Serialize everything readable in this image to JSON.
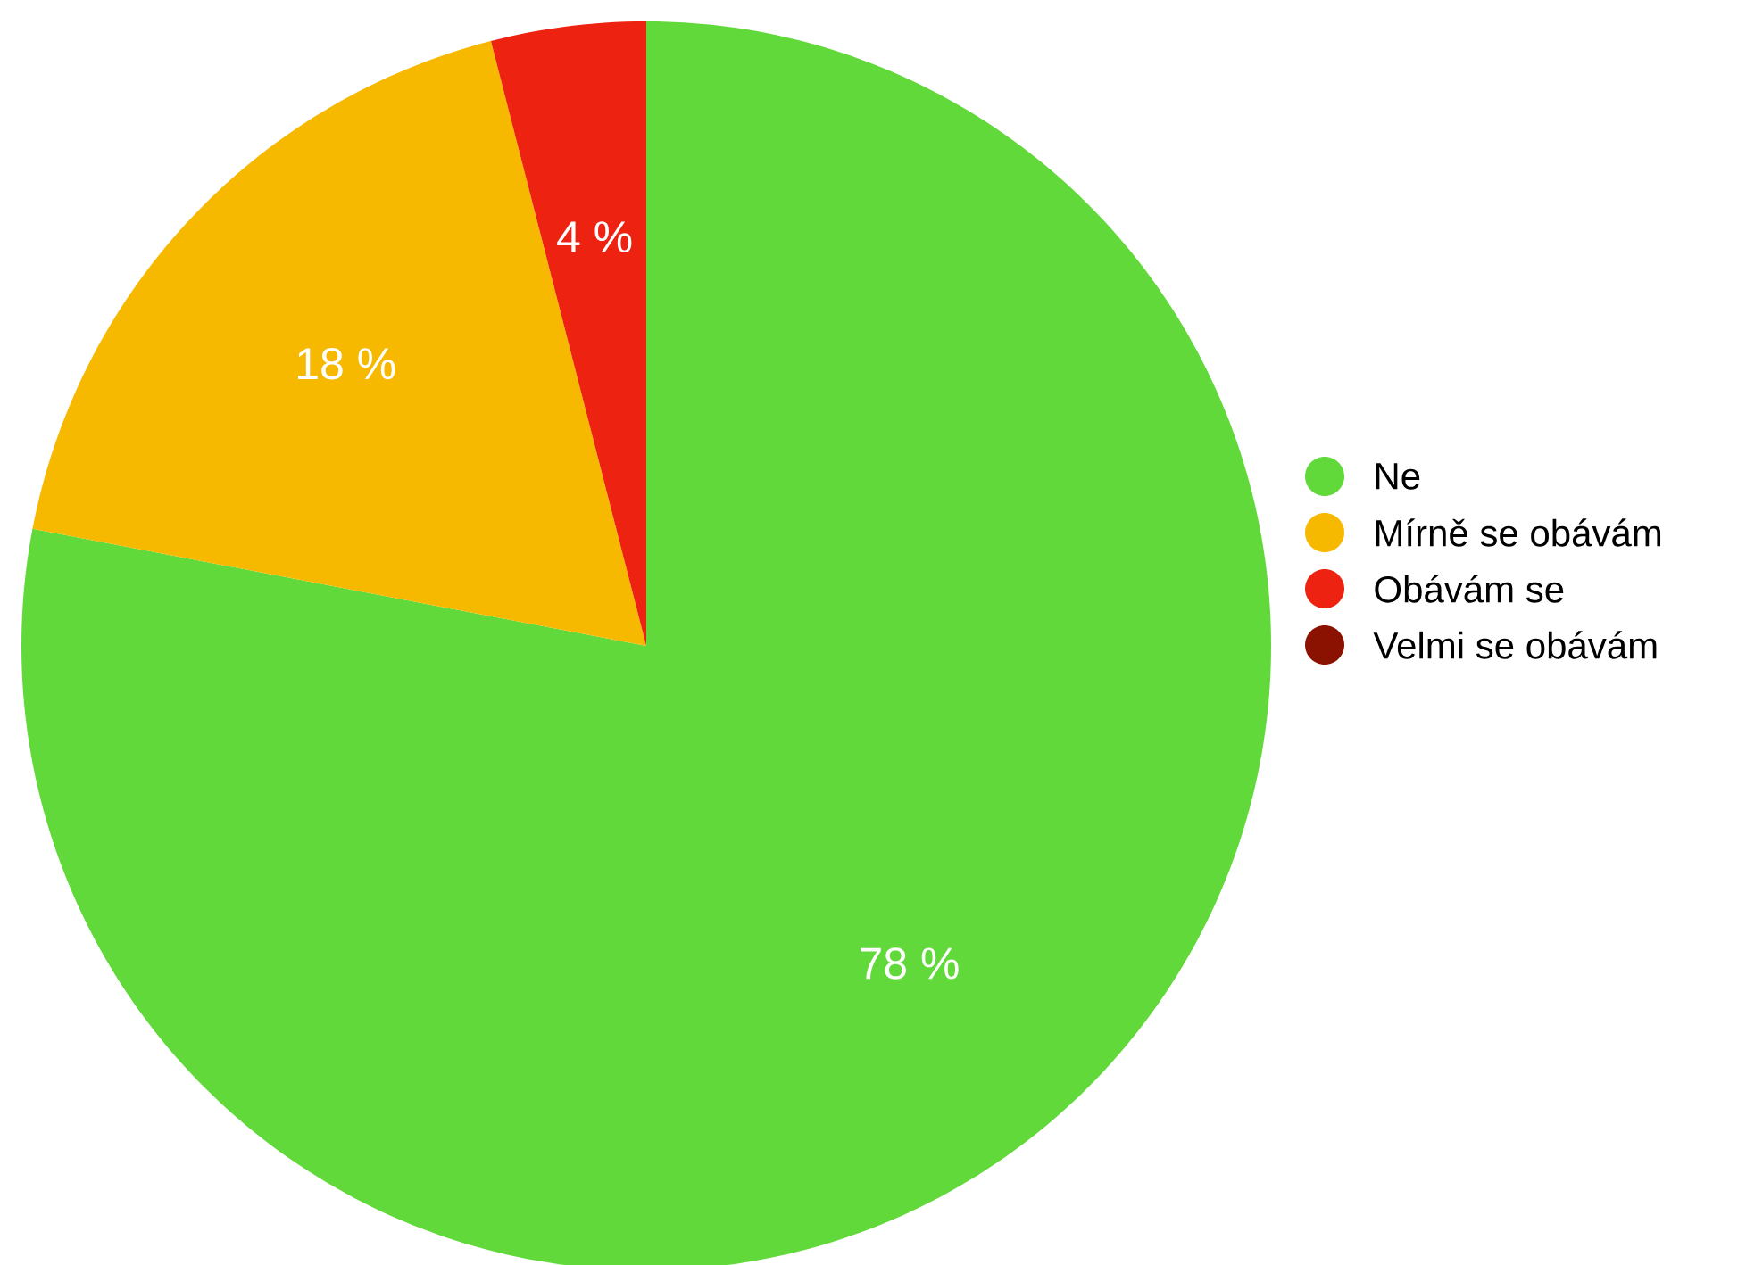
{
  "chart_data": {
    "type": "pie",
    "categories": [
      "Ne",
      "Mírně se obávám",
      "Obávám se",
      "Velmi se obávám"
    ],
    "values": [
      78,
      18,
      4,
      0
    ],
    "colors": [
      "#62d93a",
      "#f7b900",
      "#ee2211",
      "#8b1200"
    ],
    "value_labels": [
      "78 %",
      "18 %",
      "4 %",
      null
    ],
    "legend": "right"
  }
}
